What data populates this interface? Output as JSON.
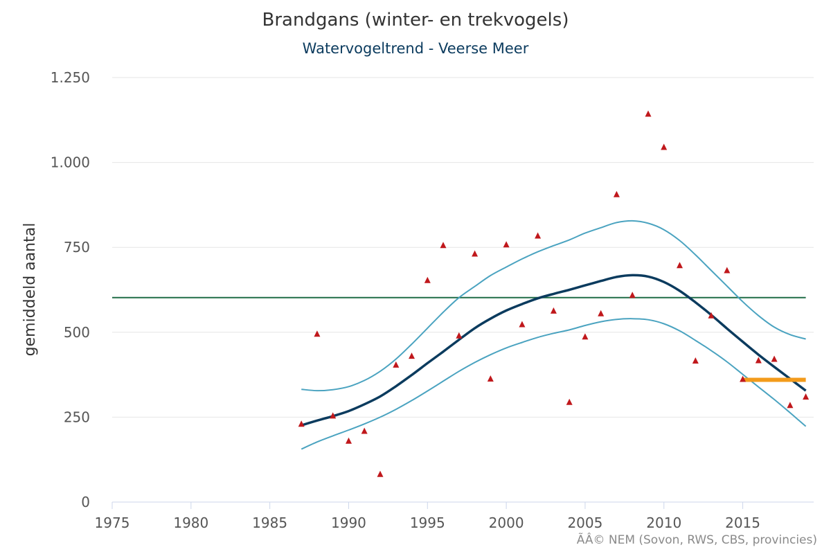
{
  "chart_data": {
    "type": "line",
    "title": "Brandgans (winter- en trekvogels)",
    "subtitle": "Watervogeltrend - Veerse Meer",
    "ylabel": "gemiddeld aantal",
    "xlabel": "",
    "xlim": [
      1975,
      2019.5
    ],
    "ylim": [
      0,
      1250
    ],
    "x_ticks": [
      1975,
      1980,
      1985,
      1990,
      1995,
      2000,
      2005,
      2010,
      2015
    ],
    "x_tick_labels": [
      "1975",
      "1980",
      "1985",
      "1990",
      "1995",
      "2000",
      "2005",
      "2010",
      "2015"
    ],
    "y_ticks": [
      0,
      250,
      500,
      750,
      1000,
      1250
    ],
    "y_tick_labels": [
      "0",
      "250",
      "500",
      "750",
      "1.000",
      "1.250"
    ],
    "grid": true,
    "series": [
      {
        "kind": "trend",
        "color": "#0b3b5e",
        "x": [
          1987,
          1988,
          1989,
          1990,
          1991,
          1992,
          1993,
          1994,
          1995,
          1996,
          1997,
          1998,
          1999,
          2000,
          2001,
          2002,
          2003,
          2004,
          2005,
          2006,
          2007,
          2008,
          2009,
          2010,
          2011,
          2012,
          2013,
          2014,
          2015,
          2016,
          2017,
          2018,
          2019
        ],
        "y": [
          226,
          240,
          253,
          268,
          288,
          311,
          341,
          374,
          409,
          443,
          478,
          512,
          540,
          564,
          583,
          600,
          613,
          625,
          638,
          651,
          663,
          668,
          664,
          648,
          622,
          588,
          551,
          511,
          472,
          434,
          398,
          363,
          328
        ]
      },
      {
        "kind": "upper-confidence",
        "color": "#4aa3c0",
        "x": [
          1987,
          1988,
          1989,
          1990,
          1991,
          1992,
          1993,
          1994,
          1995,
          1996,
          1997,
          1998,
          1999,
          2000,
          2001,
          2002,
          2003,
          2004,
          2005,
          2006,
          2007,
          2008,
          2009,
          2010,
          2011,
          2012,
          2013,
          2014,
          2015,
          2016,
          2017,
          2018,
          2019
        ],
        "y": [
          332,
          328,
          331,
          340,
          358,
          385,
          421,
          465,
          512,
          559,
          602,
          635,
          667,
          692,
          716,
          737,
          755,
          772,
          792,
          808,
          823,
          828,
          821,
          802,
          770,
          728,
          682,
          636,
          590,
          549,
          515,
          493,
          480
        ]
      },
      {
        "kind": "lower-confidence",
        "color": "#4aa3c0",
        "x": [
          1987,
          1988,
          1989,
          1990,
          1991,
          1992,
          1993,
          1994,
          1995,
          1996,
          1997,
          1998,
          1999,
          2000,
          2001,
          2002,
          2003,
          2004,
          2005,
          2006,
          2007,
          2008,
          2009,
          2010,
          2011,
          2012,
          2013,
          2014,
          2015,
          2016,
          2017,
          2018,
          2019
        ],
        "y": [
          156,
          177,
          195,
          212,
          230,
          250,
          273,
          299,
          327,
          356,
          385,
          411,
          434,
          454,
          470,
          485,
          497,
          507,
          520,
          531,
          538,
          540,
          537,
          525,
          504,
          476,
          446,
          413,
          376,
          339,
          302,
          263,
          223
        ]
      },
      {
        "kind": "reference-level",
        "color": "#1e6b45",
        "x": [
          1975,
          2019
        ],
        "y": [
          602,
          602
        ]
      },
      {
        "kind": "recent-mean",
        "color": "#f39b1b",
        "x": [
          2015,
          2019
        ],
        "y": [
          360,
          360
        ]
      },
      {
        "kind": "yearly-counts",
        "type": "scatter",
        "marker": "triangle",
        "color": "#c0181c",
        "x": [
          1987,
          1988,
          1989,
          1990,
          1991,
          1992,
          1993,
          1994,
          1995,
          1996,
          1997,
          1998,
          1999,
          2000,
          2001,
          2002,
          2003,
          2004,
          2005,
          2006,
          2007,
          2008,
          2009,
          2010,
          2011,
          2012,
          2013,
          2014,
          2015,
          2016,
          2017,
          2018,
          2019
        ],
        "y": [
          230,
          495,
          254,
          180,
          209,
          82,
          404,
          430,
          653,
          756,
          490,
          731,
          363,
          758,
          523,
          784,
          563,
          294,
          487,
          555,
          906,
          609,
          1143,
          1045,
          697,
          416,
          549,
          682,
          362,
          417,
          421,
          285,
          310
        ]
      }
    ],
    "credits": "ÃÂ© NEM (Sovon, RWS, CBS, provincies)"
  }
}
